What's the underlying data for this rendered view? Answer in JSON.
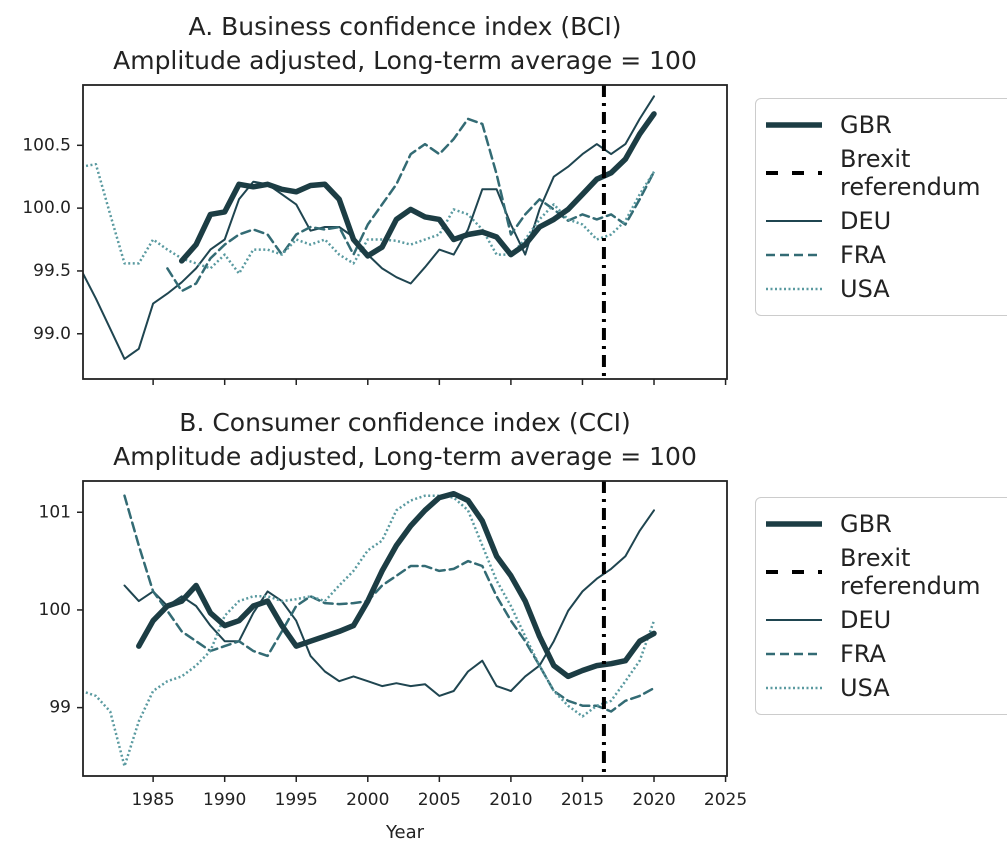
{
  "chart_data": [
    {
      "type": "line",
      "title": "A. Business confidence index (BCI)",
      "subtitle": "Amplitude adjusted, Long-term average = 100",
      "x": [
        1980,
        1981,
        1982,
        1983,
        1984,
        1985,
        1986,
        1987,
        1988,
        1989,
        1990,
        1991,
        1992,
        1993,
        1994,
        1995,
        1996,
        1997,
        1998,
        1999,
        2000,
        2001,
        2002,
        2003,
        2004,
        2005,
        2006,
        2007,
        2008,
        2009,
        2010,
        2011,
        2012,
        2013,
        2014,
        2015,
        2016,
        2017,
        2018,
        2019,
        2020
      ],
      "series": [
        {
          "name": "GBR",
          "color": "#1c3d44",
          "style": "thick",
          "values": [
            null,
            null,
            null,
            null,
            null,
            null,
            null,
            99.58,
            99.71,
            99.95,
            99.97,
            100.19,
            100.17,
            100.19,
            100.15,
            100.13,
            100.18,
            100.19,
            100.07,
            99.75,
            99.62,
            99.69,
            99.91,
            99.99,
            99.93,
            99.91,
            99.75,
            99.79,
            99.81,
            99.77,
            99.63,
            99.71,
            99.85,
            99.91,
            99.99,
            100.11,
            100.23,
            100.28,
            100.39,
            100.59,
            100.75
          ]
        },
        {
          "name": "DEU",
          "color": "#1f4550",
          "style": "solid",
          "values": [
            99.5,
            99.28,
            99.04,
            98.8,
            98.88,
            99.24,
            99.32,
            99.41,
            99.52,
            99.67,
            99.75,
            100.07,
            100.21,
            100.19,
            100.11,
            100.03,
            99.82,
            99.85,
            99.85,
            99.77,
            99.63,
            99.52,
            99.45,
            99.4,
            99.53,
            99.67,
            99.63,
            99.83,
            100.15,
            100.15,
            99.87,
            99.63,
            99.99,
            100.25,
            100.33,
            100.43,
            100.51,
            100.43,
            100.51,
            100.71,
            100.89
          ]
        },
        {
          "name": "FRA",
          "color": "#336b74",
          "style": "dashed",
          "values": [
            null,
            null,
            null,
            null,
            null,
            null,
            99.52,
            99.34,
            99.4,
            99.6,
            99.71,
            99.79,
            99.83,
            99.79,
            99.63,
            99.79,
            99.85,
            99.83,
            99.85,
            99.63,
            99.87,
            100.03,
            100.19,
            100.43,
            100.51,
            100.43,
            100.55,
            100.71,
            100.67,
            100.27,
            99.79,
            99.95,
            100.07,
            99.99,
            99.9,
            99.95,
            99.91,
            99.95,
            99.87,
            100.07,
            100.29
          ]
        },
        {
          "name": "USA",
          "color": "#5a9aa0",
          "style": "dotted",
          "values": [
            100.33,
            100.35,
            99.95,
            99.56,
            99.56,
            99.75,
            99.67,
            99.6,
            99.56,
            99.52,
            99.63,
            99.48,
            99.67,
            99.67,
            99.63,
            99.75,
            99.71,
            99.75,
            99.63,
            99.56,
            99.75,
            99.75,
            99.74,
            99.71,
            99.75,
            99.79,
            99.99,
            99.95,
            99.83,
            99.63,
            99.63,
            99.75,
            99.91,
            100.03,
            99.91,
            99.87,
            99.75,
            99.79,
            99.9,
            100.11,
            100.29
          ]
        }
      ],
      "brexit": {
        "name": "Brexit referendum",
        "x": 2016.5,
        "color": "#000000"
      },
      "xlim": [
        1980.1,
        2025.1
      ],
      "xticks": [
        1985,
        1990,
        1995,
        2000,
        2005,
        2010,
        2015,
        2020,
        2025
      ],
      "ylim": [
        98.64,
        100.98
      ],
      "yticks": [
        {
          "value": 99,
          "label": "99.0"
        },
        99.5,
        {
          "value": 100,
          "label": "100.0"
        },
        100.5
      ]
    },
    {
      "type": "line",
      "title": "B. Consumer confidence index (CCI)",
      "subtitle": "Amplitude adjusted, Long-term average = 100",
      "xlabel": "Year",
      "x": [
        1980,
        1981,
        1982,
        1983,
        1984,
        1985,
        1986,
        1987,
        1988,
        1989,
        1990,
        1991,
        1992,
        1993,
        1994,
        1995,
        1996,
        1997,
        1998,
        1999,
        2000,
        2001,
        2002,
        2003,
        2004,
        2005,
        2006,
        2007,
        2008,
        2009,
        2010,
        2011,
        2012,
        2013,
        2014,
        2015,
        2016,
        2017,
        2018,
        2019,
        2020
      ],
      "series": [
        {
          "name": "GBR",
          "color": "#1c3d44",
          "style": "thick",
          "values": [
            null,
            null,
            null,
            null,
            99.63,
            99.89,
            100.04,
            100.09,
            100.25,
            99.97,
            99.84,
            99.89,
            100.04,
            100.09,
            99.84,
            99.63,
            99.68,
            99.73,
            99.78,
            99.84,
            100.09,
            100.4,
            100.66,
            100.86,
            101.02,
            101.15,
            101.19,
            101.12,
            100.91,
            100.55,
            100.35,
            100.09,
            99.73,
            99.43,
            99.32,
            99.38,
            99.43,
            99.45,
            99.48,
            99.68,
            99.76
          ]
        },
        {
          "name": "DEU",
          "color": "#1f4550",
          "style": "solid",
          "values": [
            null,
            null,
            null,
            100.25,
            100.09,
            100.19,
            100.04,
            100.14,
            100.04,
            99.84,
            99.68,
            99.68,
            99.97,
            100.19,
            100.09,
            99.89,
            99.53,
            99.37,
            99.27,
            99.32,
            99.27,
            99.22,
            99.25,
            99.22,
            99.24,
            99.12,
            99.17,
            99.37,
            99.48,
            99.22,
            99.17,
            99.32,
            99.43,
            99.68,
            99.99,
            100.19,
            100.32,
            100.42,
            100.55,
            100.81,
            101.02
          ]
        },
        {
          "name": "FRA",
          "color": "#336b74",
          "style": "dashed",
          "values": [
            null,
            null,
            null,
            101.17,
            100.66,
            100.19,
            99.99,
            99.78,
            99.68,
            99.58,
            99.63,
            99.68,
            99.58,
            99.53,
            99.78,
            100.04,
            100.14,
            100.07,
            100.06,
            100.07,
            100.09,
            100.25,
            100.35,
            100.45,
            100.45,
            100.4,
            100.42,
            100.5,
            100.45,
            100.14,
            99.89,
            99.68,
            99.43,
            99.17,
            99.07,
            99.02,
            99.02,
            98.96,
            99.07,
            99.12,
            99.2
          ]
        },
        {
          "name": "USA",
          "color": "#5a9aa0",
          "style": "dotted",
          "values": [
            99.17,
            99.12,
            98.96,
            98.4,
            98.86,
            99.17,
            99.27,
            99.32,
            99.43,
            99.58,
            99.94,
            100.09,
            100.14,
            100.14,
            100.09,
            100.11,
            100.14,
            100.09,
            100.25,
            100.4,
            100.61,
            100.71,
            101.02,
            101.12,
            101.17,
            101.17,
            101.15,
            101.02,
            100.66,
            100.3,
            100.04,
            99.73,
            99.43,
            99.17,
            99.02,
            98.91,
            99.02,
            99.07,
            99.27,
            99.48,
            99.89
          ]
        }
      ],
      "brexit": {
        "name": "Brexit referendum",
        "x": 2016.5,
        "color": "#000000"
      },
      "xlim": [
        1980.1,
        2025.1
      ],
      "xticks": [
        1985,
        1990,
        1995,
        2000,
        2005,
        2010,
        2015,
        2020,
        2025
      ],
      "ylim": [
        98.3,
        101.32
      ],
      "yticks": [
        99,
        100,
        101
      ]
    }
  ]
}
